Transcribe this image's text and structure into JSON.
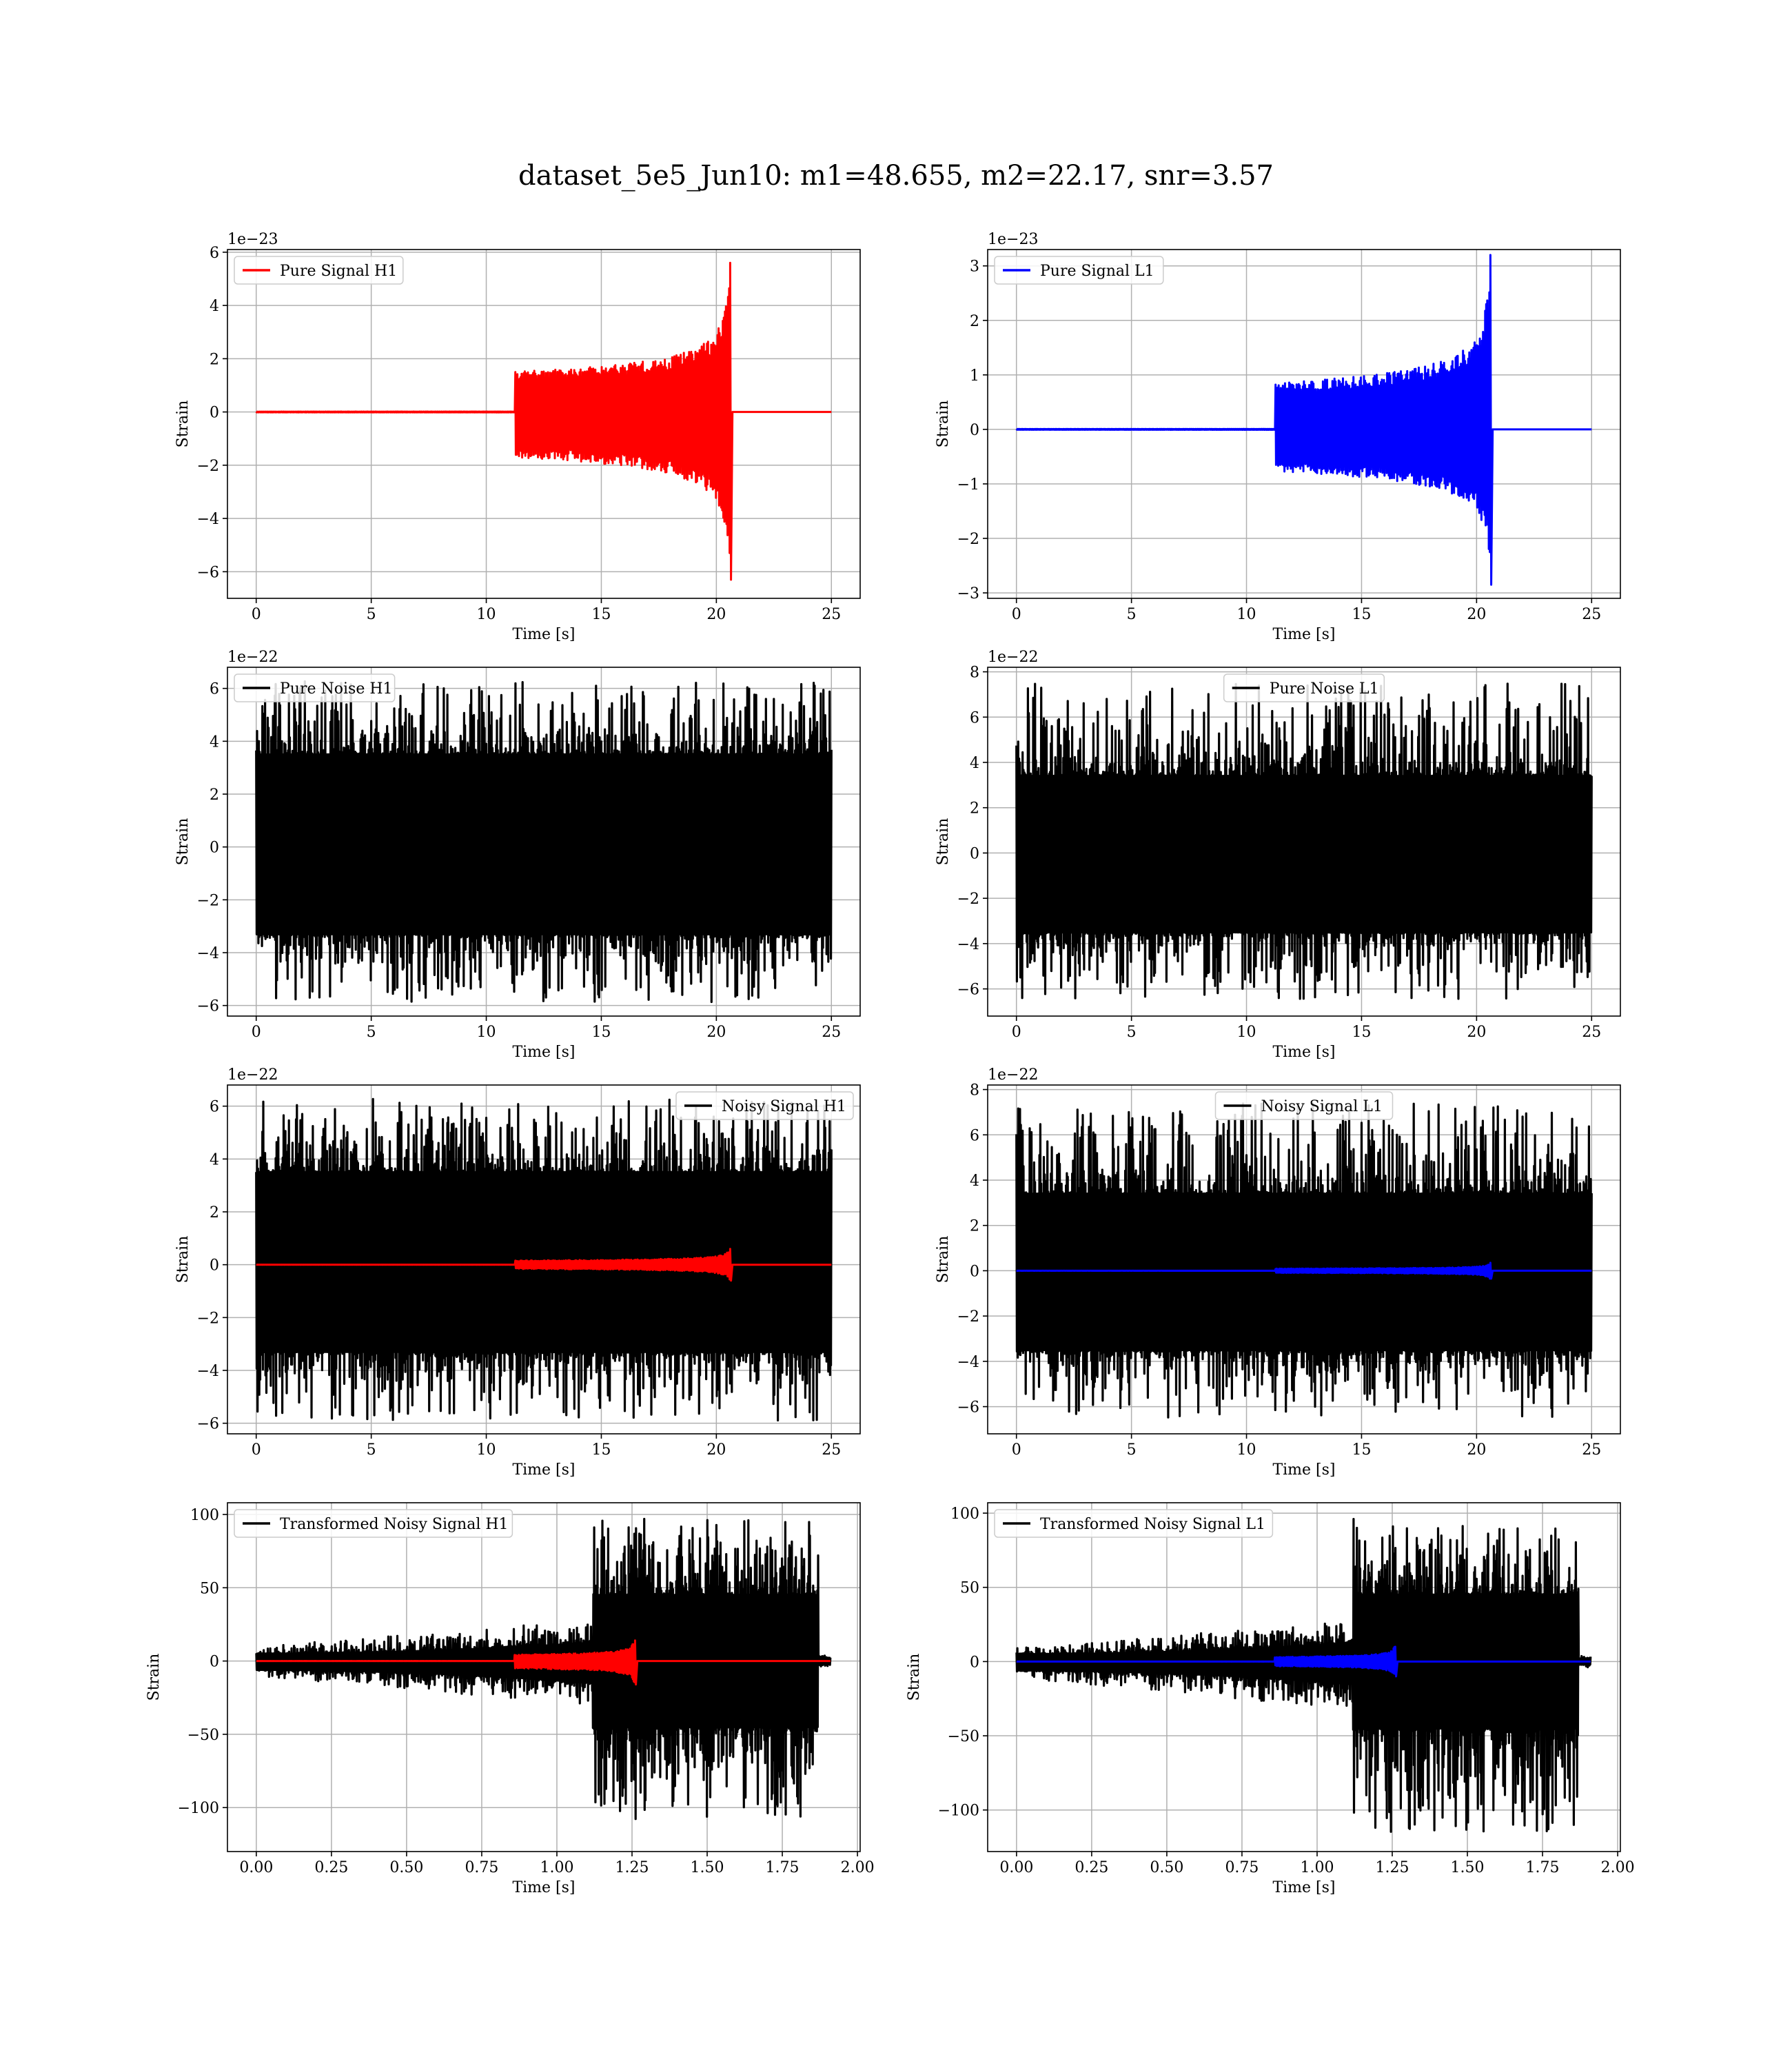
{
  "figure": {
    "title": "dataset_5e5_Jun10: m1=48.655, m2=22.17, snr=3.57"
  },
  "colors": {
    "h1_signal": "#ff0000",
    "l1_signal": "#0000ff",
    "noise": "#000000",
    "grid": "#b0b0b0",
    "background": "#ffffff"
  },
  "chart_data": [
    {
      "id": "pure-signal-h1",
      "type": "line",
      "xlabel": "Time [s]",
      "ylabel": "Strain",
      "offset_text": "1e−23",
      "xlim": [
        -1.25,
        26.25
      ],
      "ylim": [
        -7,
        6.1
      ],
      "xticks": [
        0,
        5,
        10,
        15,
        20,
        25
      ],
      "xtick_labels": [
        "0",
        "5",
        "10",
        "15",
        "20",
        "25"
      ],
      "yticks": [
        -6,
        -4,
        -2,
        0,
        2,
        4,
        6
      ],
      "ytick_labels": [
        "−6",
        "−4",
        "−2",
        "0",
        "2",
        "4",
        "6"
      ],
      "grid": true,
      "legend_position": "upper-left",
      "series": [
        {
          "name": "Pure Signal H1",
          "color": "#ff0000",
          "kind": "chirp",
          "x_range": [
            0,
            25
          ],
          "merger_time": 20.6,
          "peak_max": 5.6,
          "peak_min": -6.3
        }
      ]
    },
    {
      "id": "pure-signal-l1",
      "type": "line",
      "xlabel": "Time [s]",
      "ylabel": "Strain",
      "offset_text": "1e−23",
      "xlim": [
        -1.25,
        26.25
      ],
      "ylim": [
        -3.1,
        3.3
      ],
      "xticks": [
        0,
        5,
        10,
        15,
        20,
        25
      ],
      "xtick_labels": [
        "0",
        "5",
        "10",
        "15",
        "20",
        "25"
      ],
      "yticks": [
        -3,
        -2,
        -1,
        0,
        1,
        2,
        3
      ],
      "ytick_labels": [
        "−3",
        "−2",
        "−1",
        "0",
        "1",
        "2",
        "3"
      ],
      "grid": true,
      "legend_position": "upper-left",
      "series": [
        {
          "name": "Pure Signal L1",
          "color": "#0000ff",
          "kind": "chirp",
          "x_range": [
            0,
            25
          ],
          "merger_time": 20.6,
          "peak_max": 3.2,
          "peak_min": -2.85
        }
      ]
    },
    {
      "id": "pure-noise-h1",
      "type": "line",
      "xlabel": "Time [s]",
      "ylabel": "Strain",
      "offset_text": "1e−22",
      "xlim": [
        -1.25,
        26.25
      ],
      "ylim": [
        -6.4,
        6.8
      ],
      "xticks": [
        0,
        5,
        10,
        15,
        20,
        25
      ],
      "xtick_labels": [
        "0",
        "5",
        "10",
        "15",
        "20",
        "25"
      ],
      "yticks": [
        -6,
        -4,
        -2,
        0,
        2,
        4,
        6
      ],
      "ytick_labels": [
        "−6",
        "−4",
        "−2",
        "0",
        "2",
        "4",
        "6"
      ],
      "grid": true,
      "legend_position": "upper-left",
      "series": [
        {
          "name": "Pure Noise H1",
          "color": "#000000",
          "kind": "noise",
          "x_range": [
            0,
            25
          ],
          "upper": [
            3.5,
            6.3
          ],
          "lower": [
            -3.3,
            -5.9
          ]
        }
      ]
    },
    {
      "id": "pure-noise-l1",
      "type": "line",
      "xlabel": "Time [s]",
      "ylabel": "Strain",
      "offset_text": "1e−22",
      "xlim": [
        -1.25,
        26.25
      ],
      "ylim": [
        -7.2,
        8.2
      ],
      "xticks": [
        0,
        5,
        10,
        15,
        20,
        25
      ],
      "xtick_labels": [
        "0",
        "5",
        "10",
        "15",
        "20",
        "25"
      ],
      "yticks": [
        -6,
        -4,
        -2,
        0,
        2,
        4,
        6,
        8
      ],
      "ytick_labels": [
        "−6",
        "−4",
        "−2",
        "0",
        "2",
        "4",
        "6",
        "8"
      ],
      "grid": true,
      "legend_position": "upper-center",
      "series": [
        {
          "name": "Pure Noise L1",
          "color": "#000000",
          "kind": "noise",
          "x_range": [
            0,
            25
          ],
          "upper": [
            3.4,
            7.5
          ],
          "lower": [
            -3.5,
            -6.5
          ]
        }
      ]
    },
    {
      "id": "noisy-signal-h1",
      "type": "line",
      "xlabel": "Time [s]",
      "ylabel": "Strain",
      "offset_text": "1e−22",
      "xlim": [
        -1.25,
        26.25
      ],
      "ylim": [
        -6.4,
        6.8
      ],
      "xticks": [
        0,
        5,
        10,
        15,
        20,
        25
      ],
      "xtick_labels": [
        "0",
        "5",
        "10",
        "15",
        "20",
        "25"
      ],
      "yticks": [
        -6,
        -4,
        -2,
        0,
        2,
        4,
        6
      ],
      "ytick_labels": [
        "−6",
        "−4",
        "−2",
        "0",
        "2",
        "4",
        "6"
      ],
      "grid": true,
      "legend_position": "upper-right",
      "series": [
        {
          "name": "Noisy Signal H1",
          "color": "#000000",
          "kind": "noise",
          "x_range": [
            0,
            25
          ],
          "upper": [
            3.5,
            6.3
          ],
          "lower": [
            -3.3,
            -5.9
          ]
        },
        {
          "color": "#ff0000",
          "kind": "chirp",
          "x_range": [
            0,
            25
          ],
          "merger_time": 20.6,
          "peak_max": 0.6,
          "peak_min": -0.6
        }
      ]
    },
    {
      "id": "noisy-signal-l1",
      "type": "line",
      "xlabel": "Time [s]",
      "ylabel": "Strain",
      "offset_text": "1e−22",
      "xlim": [
        -1.25,
        26.25
      ],
      "ylim": [
        -7.2,
        8.2
      ],
      "xticks": [
        0,
        5,
        10,
        15,
        20,
        25
      ],
      "xtick_labels": [
        "0",
        "5",
        "10",
        "15",
        "20",
        "25"
      ],
      "yticks": [
        -6,
        -4,
        -2,
        0,
        2,
        4,
        6,
        8
      ],
      "ytick_labels": [
        "−6",
        "−4",
        "−2",
        "0",
        "2",
        "4",
        "6",
        "8"
      ],
      "grid": true,
      "legend_position": "upper-center",
      "series": [
        {
          "name": "Noisy Signal L1",
          "color": "#000000",
          "kind": "noise",
          "x_range": [
            0,
            25
          ],
          "upper": [
            3.4,
            7.5
          ],
          "lower": [
            -3.5,
            -6.5
          ]
        },
        {
          "color": "#0000ff",
          "kind": "chirp",
          "x_range": [
            0,
            25
          ],
          "merger_time": 20.6,
          "peak_max": 0.35,
          "peak_min": -0.35
        }
      ]
    },
    {
      "id": "transformed-h1",
      "type": "line",
      "xlabel": "Time [s]",
      "ylabel": "Strain",
      "offset_text": "",
      "xlim": [
        -0.096,
        2.009
      ],
      "ylim": [
        -130,
        108
      ],
      "xticks": [
        0,
        0.25,
        0.5,
        0.75,
        1.0,
        1.25,
        1.5,
        1.75,
        2.0
      ],
      "xtick_labels": [
        "0.00",
        "0.25",
        "0.50",
        "0.75",
        "1.00",
        "1.25",
        "1.50",
        "1.75",
        "2.00"
      ],
      "yticks": [
        -100,
        -50,
        0,
        50,
        100
      ],
      "ytick_labels": [
        "−100",
        "−50",
        "0",
        "50",
        "100"
      ],
      "grid": true,
      "legend_position": "upper-left",
      "series": [
        {
          "name": "Transformed Noisy Signal H1",
          "color": "#000000",
          "kind": "whitened",
          "x_range": [
            0,
            1.91
          ],
          "jump_time": 1.12,
          "cutoff_time": 1.87,
          "upper_before": [
            5,
            28
          ],
          "lower_before": [
            -6,
            -30
          ],
          "upper_after": [
            45,
            97
          ],
          "lower_after": [
            -45,
            -108
          ]
        },
        {
          "color": "#ff0000",
          "kind": "chirp",
          "x_range": [
            0,
            1.91
          ],
          "merger_time": 1.26,
          "peak_max": 14,
          "peak_min": -16
        }
      ]
    },
    {
      "id": "transformed-l1",
      "type": "line",
      "xlabel": "Time [s]",
      "ylabel": "Strain",
      "offset_text": "",
      "xlim": [
        -0.096,
        2.009
      ],
      "ylim": [
        -128,
        107
      ],
      "xticks": [
        0,
        0.25,
        0.5,
        0.75,
        1.0,
        1.25,
        1.5,
        1.75,
        2.0
      ],
      "xtick_labels": [
        "0.00",
        "0.25",
        "0.50",
        "0.75",
        "1.00",
        "1.25",
        "1.50",
        "1.75",
        "2.00"
      ],
      "yticks": [
        -100,
        -50,
        0,
        50,
        100
      ],
      "ytick_labels": [
        "−100",
        "−50",
        "0",
        "50",
        "100"
      ],
      "grid": true,
      "legend_position": "upper-left",
      "series": [
        {
          "name": "Transformed Noisy Signal L1",
          "color": "#000000",
          "kind": "whitened",
          "x_range": [
            0,
            1.91
          ],
          "jump_time": 1.12,
          "cutoff_time": 1.87,
          "upper_before": [
            5,
            27
          ],
          "lower_before": [
            -6,
            -32
          ],
          "upper_after": [
            45,
            98
          ],
          "lower_after": [
            -45,
            -116
          ]
        },
        {
          "color": "#0000ff",
          "kind": "chirp",
          "x_range": [
            0,
            1.91
          ],
          "merger_time": 1.26,
          "peak_max": 10,
          "peak_min": -10
        }
      ]
    }
  ]
}
